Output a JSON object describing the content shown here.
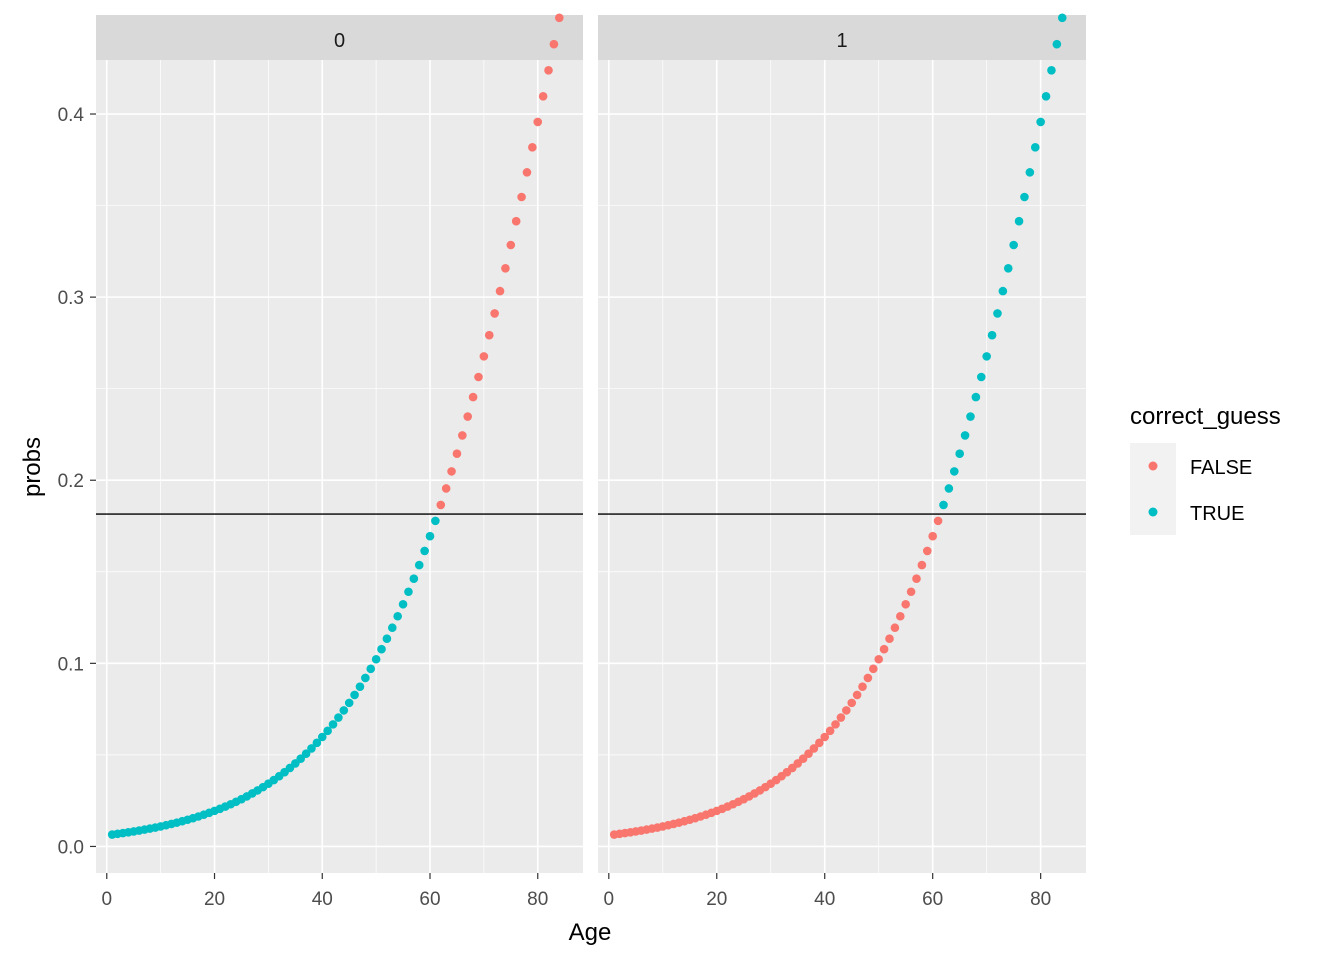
{
  "chart_data": {
    "type": "scatter",
    "xlabel": "Age",
    "ylabel": "probs",
    "xlim": [
      -2,
      88.4
    ],
    "ylim": [
      -0.0145,
      0.4295
    ],
    "x_ticks": [
      0,
      20,
      40,
      60,
      80
    ],
    "y_ticks": [
      0.0,
      0.1,
      0.2,
      0.3,
      0.4
    ],
    "y_tick_labels": [
      "0.0",
      "0.1",
      "0.2",
      "0.3",
      "0.4"
    ],
    "grid": true,
    "legend": {
      "title": "correct_guess",
      "position": "right",
      "entries": [
        {
          "label": "FALSE",
          "color": "#F8766D"
        },
        {
          "label": "TRUE",
          "color": "#00BFC4"
        }
      ]
    },
    "hline": 0.1815,
    "curve": {
      "x_start": 1,
      "x_end": 85,
      "x_step": 1,
      "intercept": -5.0876,
      "slope": 0.0583
    },
    "facets": [
      {
        "label": "0",
        "below_threshold": "TRUE",
        "above_threshold": "FALSE"
      },
      {
        "label": "1",
        "below_threshold": "FALSE",
        "above_threshold": "TRUE"
      }
    ],
    "colors": {
      "FALSE": "#F8766D",
      "TRUE": "#00BFC4"
    }
  }
}
